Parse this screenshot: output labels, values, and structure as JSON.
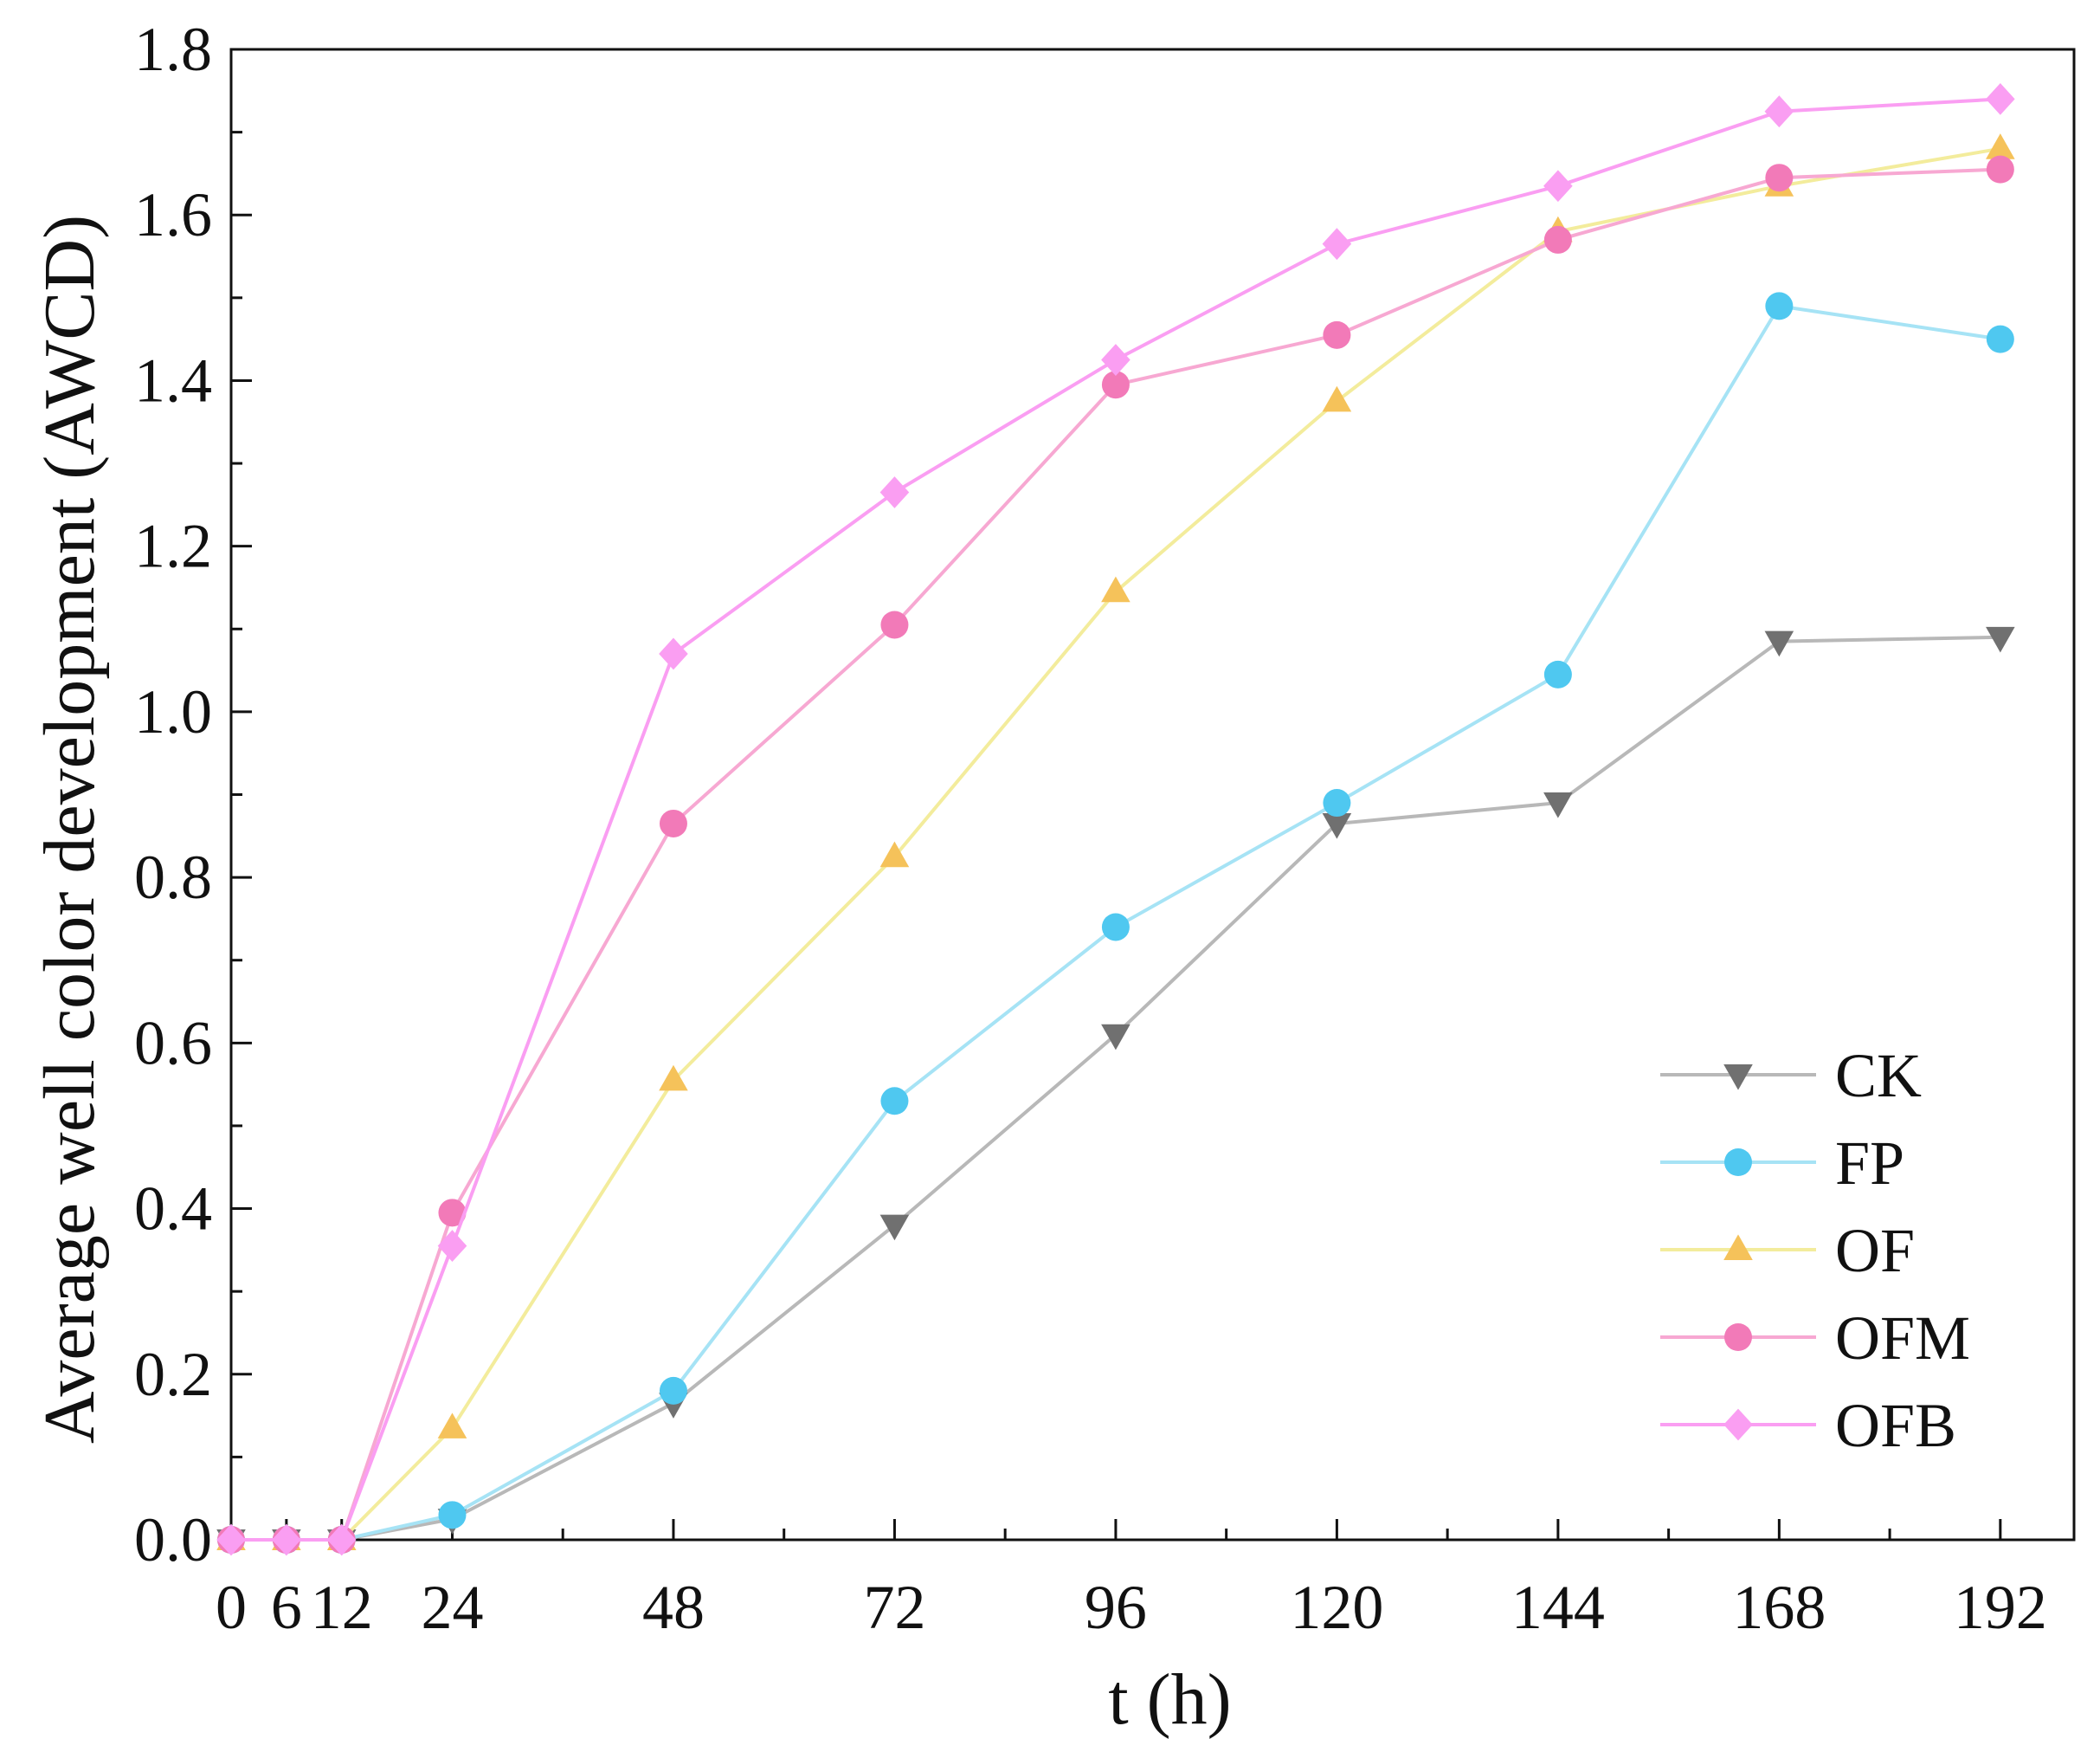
{
  "chart_data": {
    "type": "line",
    "xlabel": "t (h)",
    "ylabel": "Average well color development (AWCD)",
    "x": [
      0,
      6,
      12,
      24,
      48,
      72,
      96,
      120,
      144,
      168,
      192
    ],
    "x_ticks": [
      0,
      6,
      12,
      24,
      48,
      72,
      96,
      120,
      144,
      168,
      192
    ],
    "x_tick_labels": [
      "0",
      "6",
      "12",
      "24",
      "48",
      "72",
      "96",
      "120",
      "144",
      "168",
      "192"
    ],
    "y_ticks": [
      0.0,
      0.2,
      0.4,
      0.6,
      0.8,
      1.0,
      1.2,
      1.4,
      1.6,
      1.8
    ],
    "y_tick_labels": [
      "0.0",
      "0.2",
      "0.4",
      "0.6",
      "0.8",
      "1.0",
      "1.2",
      "1.4",
      "1.6",
      "1.8"
    ],
    "xlim": [
      0,
      200
    ],
    "ylim": [
      0,
      1.8
    ],
    "legend_position": "bottom-right",
    "series": [
      {
        "name": "CK",
        "marker": "triangle-down",
        "line_color": "#b8b8b8",
        "marker_color": "#707070",
        "values": [
          0.0,
          0.0,
          0.0,
          0.025,
          0.165,
          0.38,
          0.61,
          0.865,
          0.89,
          1.085,
          1.09
        ]
      },
      {
        "name": "FP",
        "marker": "circle",
        "line_color": "#a6e3f5",
        "marker_color": "#4fc8f0",
        "values": [
          0.0,
          0.0,
          0.0,
          0.03,
          0.18,
          0.53,
          0.74,
          0.89,
          1.045,
          1.49,
          1.45
        ]
      },
      {
        "name": "OF",
        "marker": "triangle-up",
        "line_color": "#f3ec9c",
        "marker_color": "#f5c25a",
        "values": [
          0.0,
          0.0,
          0.0,
          0.135,
          0.555,
          0.825,
          1.145,
          1.375,
          1.58,
          1.635,
          1.68
        ]
      },
      {
        "name": "OFM",
        "marker": "circle",
        "line_color": "#f7a8d2",
        "marker_color": "#f27ab8",
        "values": [
          0.0,
          0.0,
          0.0,
          0.395,
          0.865,
          1.105,
          1.395,
          1.455,
          1.57,
          1.645,
          1.655
        ]
      },
      {
        "name": "OFB",
        "marker": "diamond",
        "line_color": "#fa9ef2",
        "marker_color": "#fa9ef2",
        "values": [
          0.0,
          0.0,
          0.0,
          0.355,
          1.07,
          1.265,
          1.425,
          1.565,
          1.635,
          1.725,
          1.74
        ]
      }
    ]
  }
}
